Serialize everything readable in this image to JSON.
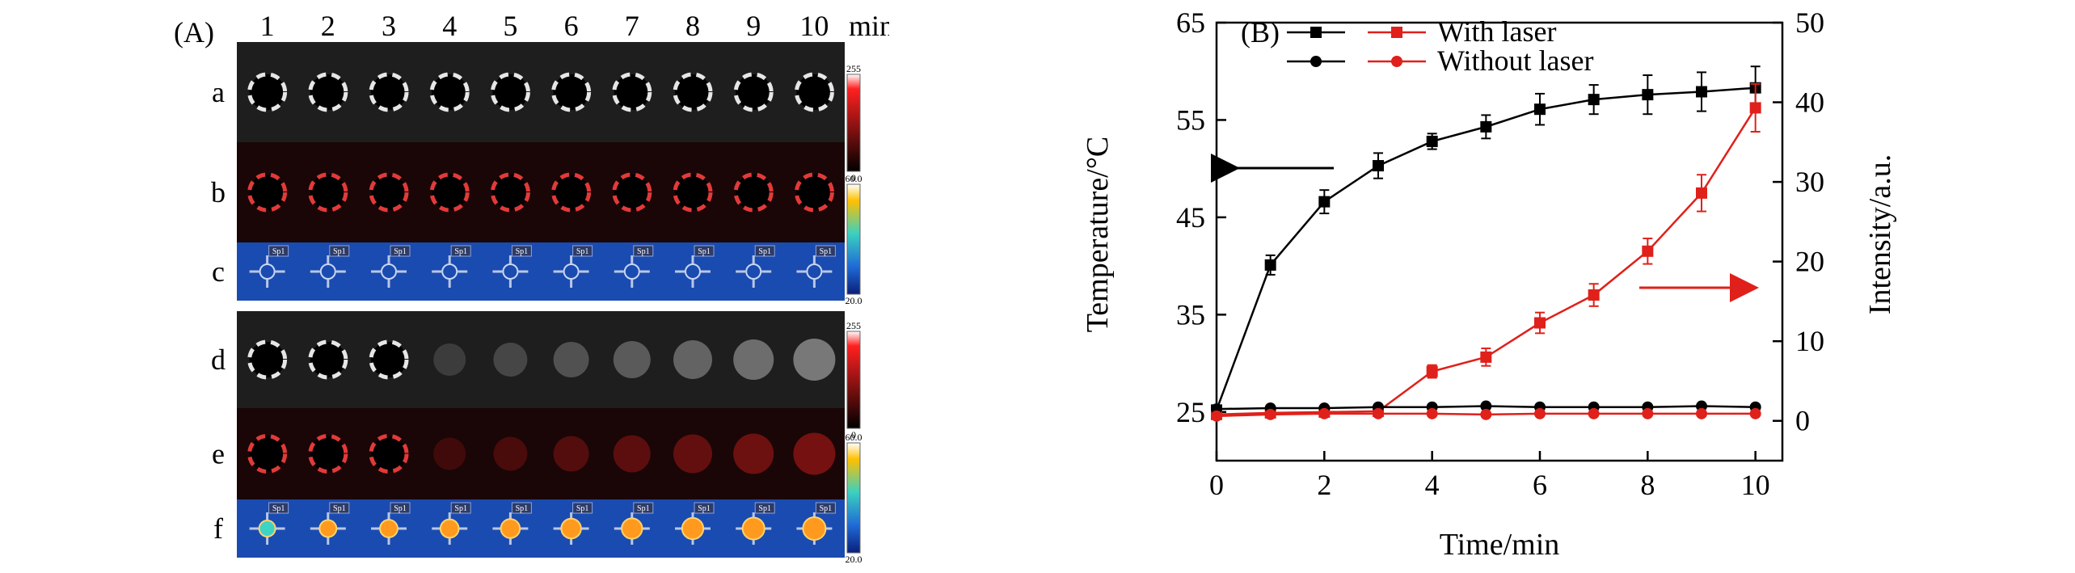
{
  "panel_a": {
    "label": "(A)",
    "time_labels": [
      "1",
      "2",
      "3",
      "4",
      "5",
      "6",
      "7",
      "8",
      "9",
      "10"
    ],
    "time_unit": "min",
    "row_labels": [
      "a",
      "b",
      "c",
      "d",
      "e",
      "f"
    ],
    "scale_gray_max": "255",
    "scale_gray_min": "0",
    "scale_thermal_max": "60.0",
    "scale_thermal_min": "20.0",
    "spot_label": "Sp1",
    "fading_from_col_d": 4,
    "colors": {
      "gray_bg": "#1e1e1e",
      "red_bg": "#1a0606",
      "thermal_bg": "#1a4bb0",
      "dashed_white": "#e6e6e6",
      "dashed_red": "#e23a3a",
      "hot_core": "#ff9a1f"
    }
  },
  "chart_data": {
    "type": "line",
    "panel_label": "(B)",
    "xlabel": "Time/min",
    "ylabel_left": "Temperature/°C",
    "ylabel_right": "Intensity/a.u.",
    "xlim": [
      0,
      10.5
    ],
    "ylim_left": [
      20,
      65
    ],
    "ylim_right": [
      -5,
      50
    ],
    "x_ticks": [
      0,
      2,
      4,
      6,
      8,
      10
    ],
    "y_left_ticks": [
      25,
      35,
      45,
      55,
      65
    ],
    "y_right_ticks": [
      0,
      10,
      20,
      30,
      40,
      50
    ],
    "legend": {
      "col_headers": [],
      "rows": [
        "With laser",
        "Without laser"
      ],
      "placement": "top-left"
    },
    "series": [
      {
        "name": "With laser",
        "axis": "left",
        "color": "#000000",
        "marker": "square",
        "x": [
          0,
          1,
          2,
          3,
          4,
          5,
          6,
          7,
          8,
          9,
          10
        ],
        "y": [
          25.2,
          40.1,
          46.6,
          50.3,
          52.8,
          54.3,
          56.1,
          57.1,
          57.6,
          57.9,
          58.3
        ],
        "err": [
          0.3,
          1.0,
          1.2,
          1.3,
          0.8,
          1.2,
          1.6,
          1.5,
          2.0,
          2.0,
          2.2
        ]
      },
      {
        "name": "With laser",
        "axis": "right",
        "color": "#e0201b",
        "marker": "square",
        "x": [
          0,
          1,
          2,
          3,
          4,
          5,
          6,
          7,
          8,
          9,
          10
        ],
        "y": [
          0.8,
          1.0,
          1.1,
          1.2,
          6.2,
          8.0,
          12.3,
          15.8,
          21.3,
          28.6,
          39.3
        ],
        "err": [
          0.3,
          0.3,
          0.3,
          0.3,
          0.8,
          1.1,
          1.3,
          1.4,
          1.6,
          2.3,
          3.0
        ]
      },
      {
        "name": "Without laser",
        "axis": "left",
        "color": "#000000",
        "marker": "circle",
        "x": [
          0,
          1,
          2,
          3,
          4,
          5,
          6,
          7,
          8,
          9,
          10
        ],
        "y": [
          25.3,
          25.4,
          25.4,
          25.5,
          25.5,
          25.6,
          25.5,
          25.5,
          25.5,
          25.6,
          25.5
        ],
        "err": [
          0.2,
          0.2,
          0.2,
          0.2,
          0.2,
          0.2,
          0.2,
          0.2,
          0.2,
          0.2,
          0.2
        ]
      },
      {
        "name": "Without laser",
        "axis": "right",
        "color": "#e0201b",
        "marker": "circle",
        "x": [
          0,
          1,
          2,
          3,
          4,
          5,
          6,
          7,
          8,
          9,
          10
        ],
        "y": [
          0.6,
          0.8,
          0.9,
          0.9,
          0.9,
          0.8,
          0.9,
          0.9,
          0.9,
          0.9,
          0.9
        ],
        "err": [
          0.2,
          0.2,
          0.2,
          0.2,
          0.2,
          0.2,
          0.2,
          0.2,
          0.2,
          0.2,
          0.2
        ]
      }
    ],
    "annotations": [
      {
        "kind": "arrow",
        "direction": "left",
        "color": "#000000",
        "points_to": "left axis"
      },
      {
        "kind": "arrow",
        "direction": "right",
        "color": "#e0201b",
        "points_to": "right axis"
      }
    ]
  }
}
